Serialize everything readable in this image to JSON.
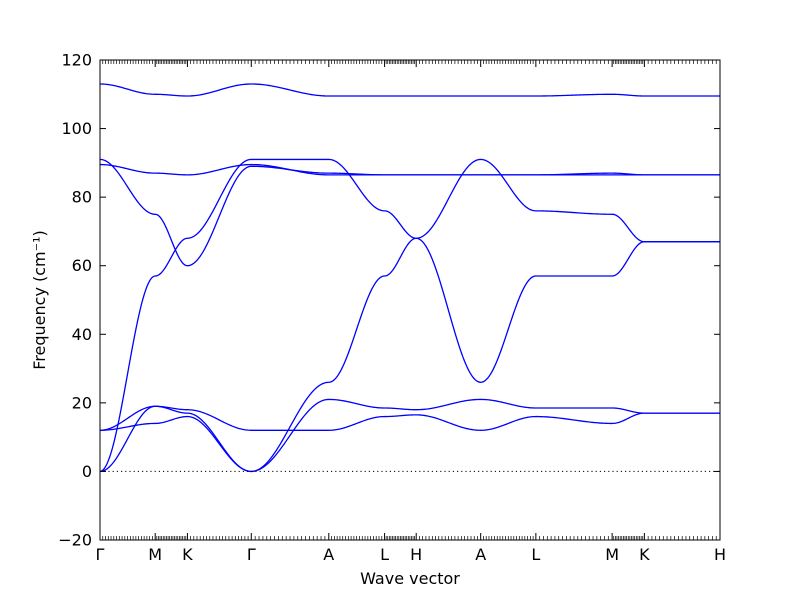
{
  "chart_data": {
    "type": "line",
    "xlabel": "Wave vector",
    "ylabel": "Frequency (cm⁻¹)",
    "ylim": [
      -20,
      120
    ],
    "yticks": [
      -20,
      0,
      20,
      40,
      60,
      80,
      100,
      120
    ],
    "xlim": [
      0,
      1
    ],
    "zero_line": "dotted",
    "grid": false,
    "line_color": "#0000ff",
    "segment_points": 20,
    "xticks": [
      {
        "x": 0.0,
        "label": "Γ"
      },
      {
        "x": 0.089,
        "label": "M"
      },
      {
        "x": 0.141,
        "label": "K"
      },
      {
        "x": 0.244,
        "label": "Γ"
      },
      {
        "x": 0.369,
        "label": "A"
      },
      {
        "x": 0.459,
        "label": "L"
      },
      {
        "x": 0.51,
        "label": "H"
      },
      {
        "x": 0.614,
        "label": "A"
      },
      {
        "x": 0.703,
        "label": "L"
      },
      {
        "x": 0.826,
        "label": "M"
      },
      {
        "x": 0.878,
        "label": "K"
      },
      {
        "x": 1.0,
        "label": "H"
      }
    ],
    "series": [
      {
        "values": [
          0,
          57,
          68,
          91,
          91,
          76,
          68,
          26,
          57,
          57,
          67,
          67
        ]
      },
      {
        "values": [
          0,
          19,
          17,
          0,
          26,
          57,
          68,
          91,
          76,
          75,
          67,
          67
        ]
      },
      {
        "values": [
          12,
          14,
          16,
          0,
          21,
          18.5,
          18,
          21,
          18.5,
          18.5,
          17,
          17
        ]
      },
      {
        "values": [
          12,
          19,
          18,
          12,
          12,
          16,
          16.5,
          12,
          16,
          14,
          17,
          17
        ]
      },
      {
        "values": [
          91,
          75,
          60,
          89,
          87,
          86.5,
          86.5,
          86.5,
          86.5,
          87,
          86.5,
          86.5
        ]
      },
      {
        "values": [
          89.5,
          87,
          86.5,
          89.5,
          86.5,
          86.5,
          86.5,
          86.5,
          86.5,
          86.5,
          86.5,
          86.5
        ]
      },
      {
        "values": [
          113,
          110,
          109.5,
          113,
          109.5,
          109.5,
          109.5,
          109.5,
          109.5,
          110,
          109.5,
          109.5
        ]
      }
    ]
  }
}
